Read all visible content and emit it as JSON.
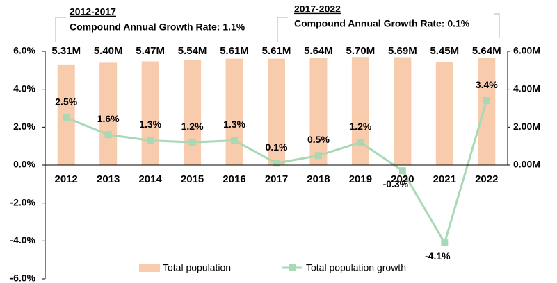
{
  "chart_data": {
    "type": "bar_line",
    "categories": [
      "2012",
      "2013",
      "2014",
      "2015",
      "2016",
      "2017",
      "2018",
      "2019",
      "2020",
      "2021",
      "2022"
    ],
    "series": [
      {
        "name": "Total population",
        "type": "bar",
        "axis": "y2",
        "color": "#f8cbad",
        "values": [
          5.31,
          5.4,
          5.47,
          5.54,
          5.61,
          5.61,
          5.64,
          5.7,
          5.69,
          5.45,
          5.64
        ],
        "value_labels": [
          "5.31M",
          "5.40M",
          "5.47M",
          "5.54M",
          "5.61M",
          "5.61M",
          "5.64M",
          "5.70M",
          "5.69M",
          "5.45M",
          "5.64M"
        ]
      },
      {
        "name": "Total population growth",
        "type": "line",
        "axis": "y",
        "color": "#a9d9b4",
        "values": [
          2.5,
          1.6,
          1.3,
          1.2,
          1.3,
          0.1,
          0.5,
          1.2,
          -0.3,
          -4.1,
          3.4
        ],
        "value_labels": [
          "2.5%",
          "1.6%",
          "1.3%",
          "1.2%",
          "1.3%",
          "0.1%",
          "0.5%",
          "1.2%",
          "-0.3%",
          "-4.1%",
          "3.4%"
        ]
      }
    ],
    "ylim": [
      -6,
      6
    ],
    "yticks": [
      {
        "value": -6,
        "label": "-6.0%"
      },
      {
        "value": -4,
        "label": "-4.0%"
      },
      {
        "value": -2,
        "label": "-2.0%"
      },
      {
        "value": 0,
        "label": "0.0%"
      },
      {
        "value": 2,
        "label": "2.0%"
      },
      {
        "value": 4,
        "label": "4.0%"
      },
      {
        "value": 6,
        "label": "6.0%"
      }
    ],
    "y2lim": [
      -6,
      6
    ],
    "y2ticks": [
      {
        "value": 0,
        "label": "0.00M"
      },
      {
        "value": 2,
        "label": "2.00M"
      },
      {
        "value": 4,
        "label": "4.00M"
      },
      {
        "value": 6,
        "label": "6.00M"
      }
    ],
    "legend": "bottom",
    "annotations": [
      {
        "title": "2012-2017",
        "text": "Compound Annual Growth Rate: 1.1%"
      },
      {
        "title": "2017-2022",
        "text": "Compound Annual Growth Rate: 0.1%"
      }
    ]
  }
}
